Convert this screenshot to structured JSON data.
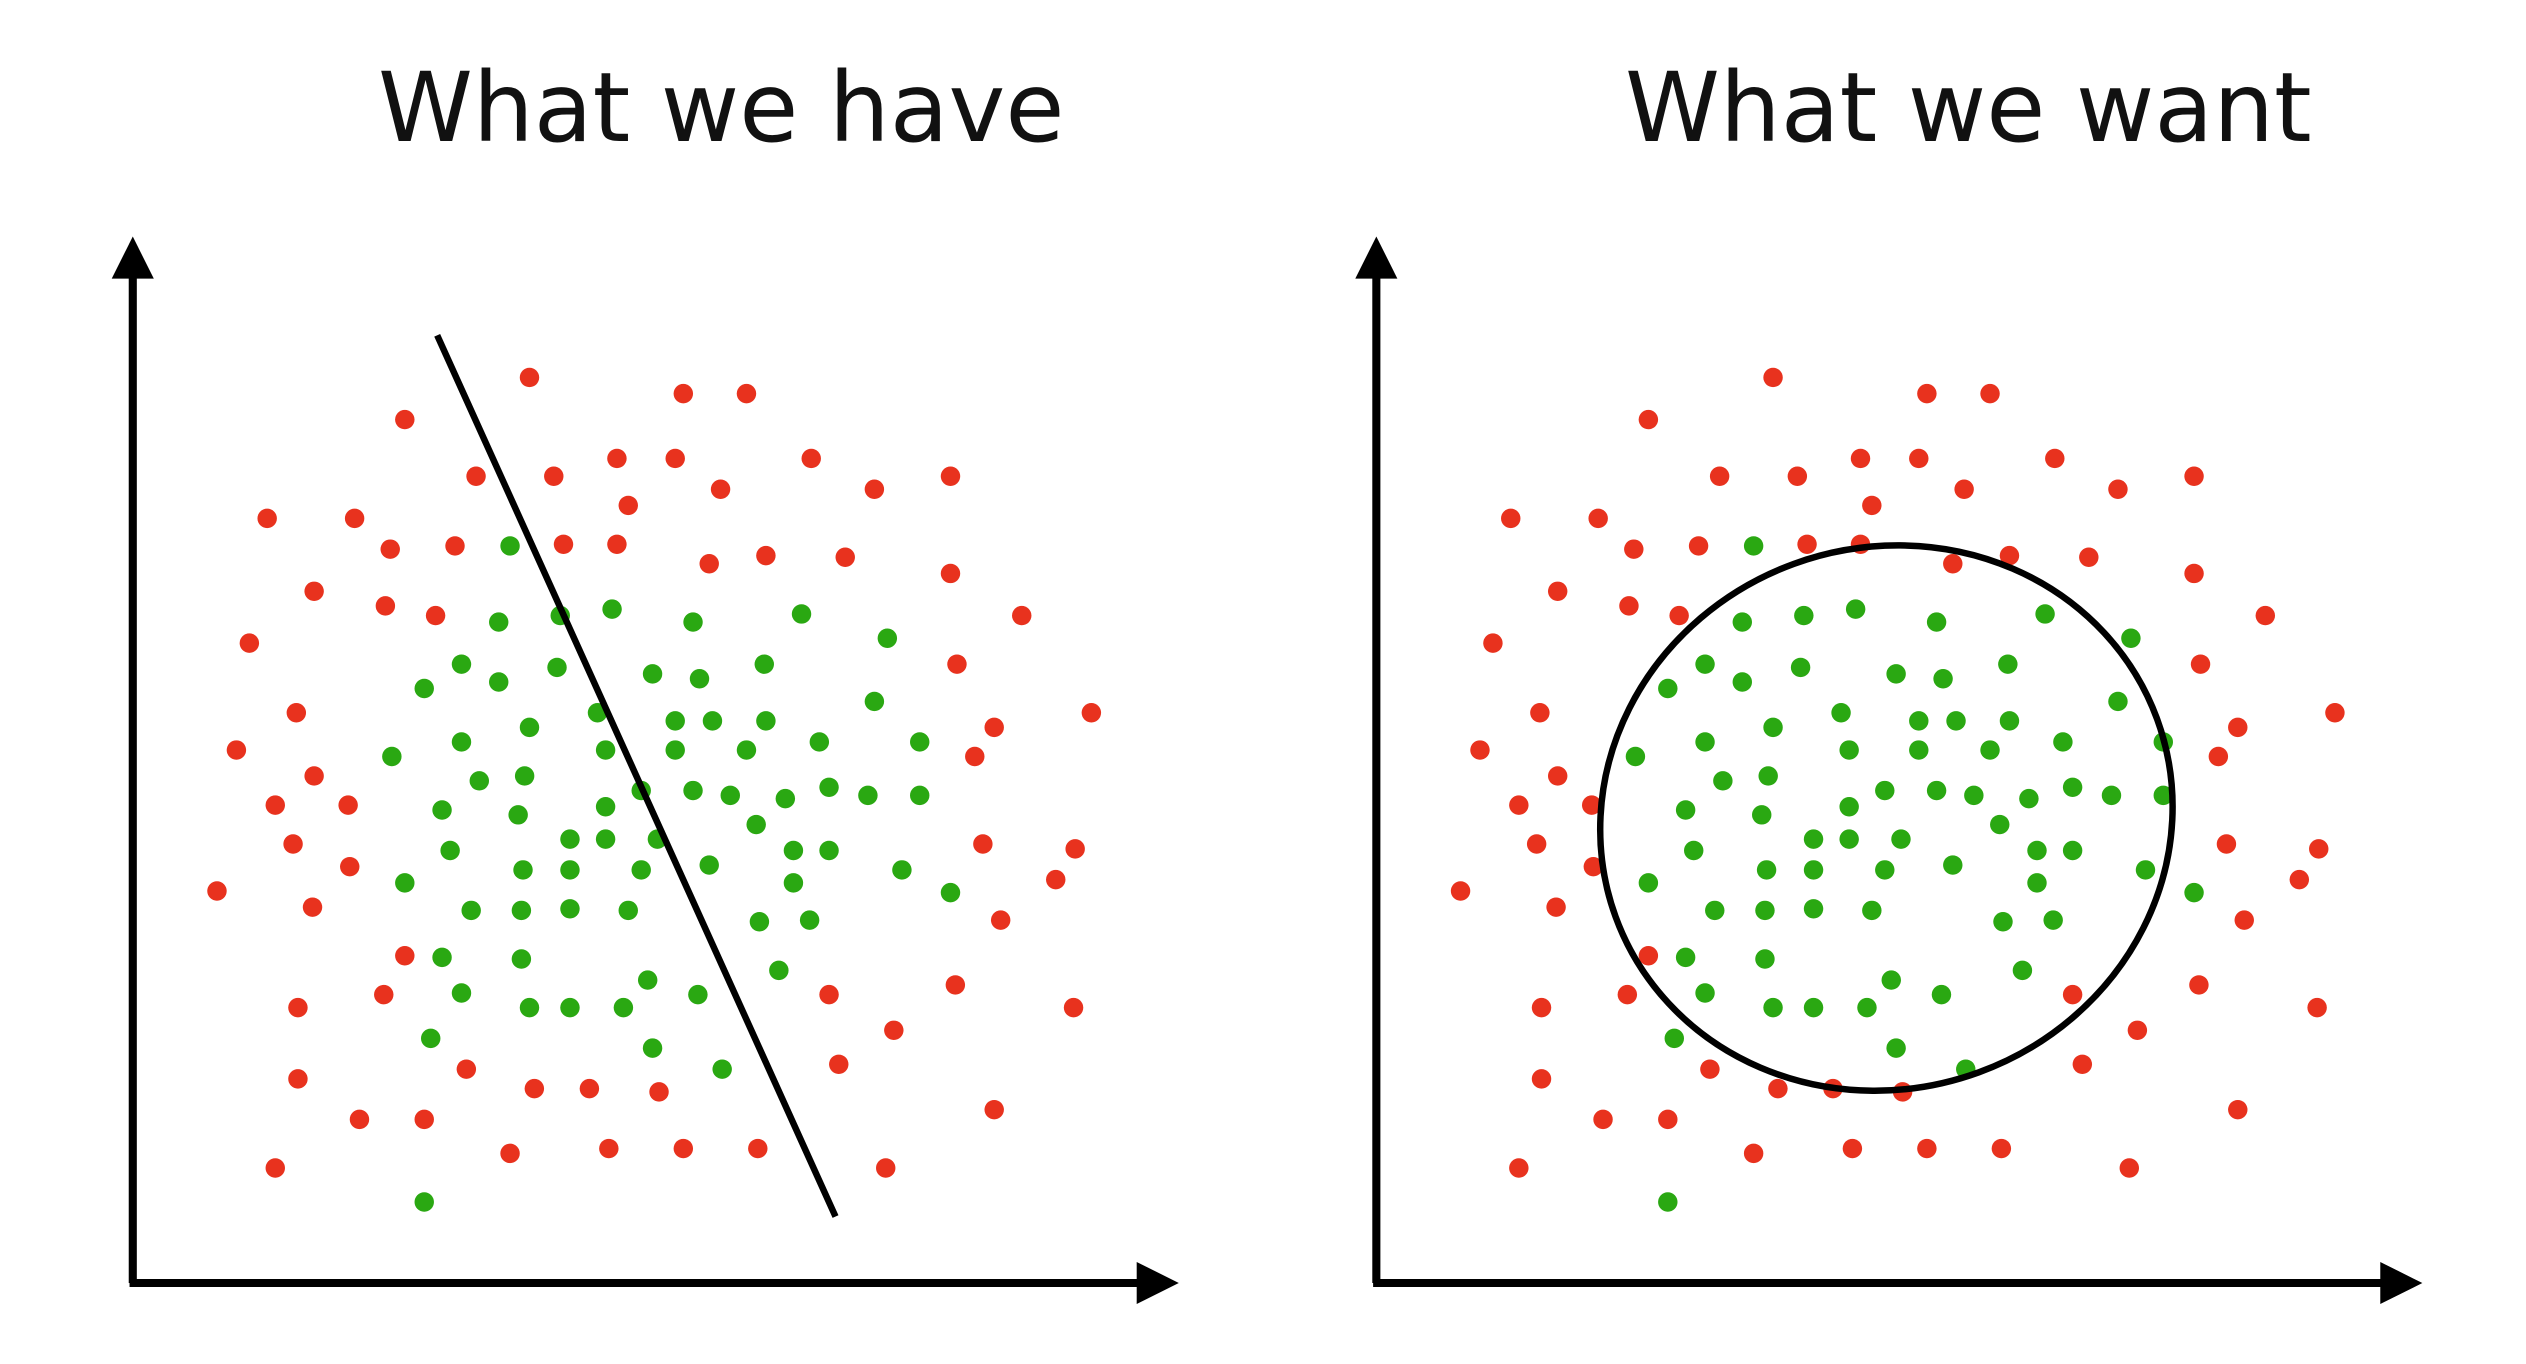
{
  "panels": [
    {
      "id": "have",
      "title": "What we have",
      "boundary": "line"
    },
    {
      "id": "want",
      "title": "What we want",
      "boundary": "ellipse"
    }
  ],
  "colors": {
    "red_point": "#e8321e",
    "green_point": "#2aa812",
    "boundary": "#000000",
    "axis": "#000000",
    "background": "#ffffff"
  }
}
